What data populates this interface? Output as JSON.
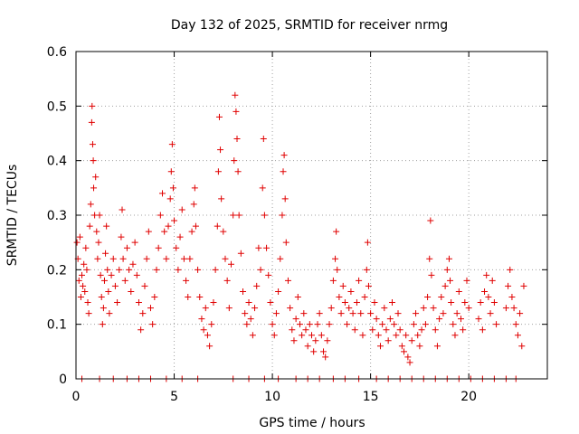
{
  "chart_data": {
    "type": "scatter",
    "title": "Day 132 of 2025, SRMTID for receiver nrmg",
    "xlabel": "GPS time / hours",
    "ylabel": "SRMTID / TECUs",
    "xlim": [
      0,
      24
    ],
    "ylim": [
      0,
      0.6
    ],
    "x_ticks": [
      0,
      5,
      10,
      15,
      20
    ],
    "x_tick_labels": [
      "0",
      "5",
      "10",
      "15",
      "20"
    ],
    "y_ticks": [
      0,
      0.1,
      0.2,
      0.3,
      0.4,
      0.5,
      0.6
    ],
    "y_tick_labels": [
      "0",
      "0.1",
      "0.2",
      "0.3",
      "0.4",
      "0.5",
      "0.6"
    ],
    "grid": true,
    "marker": "+",
    "series": [
      {
        "name": "SRMTID",
        "color": "#e00000",
        "points": [
          [
            0.05,
            0.25
          ],
          [
            0.1,
            0.22
          ],
          [
            0.15,
            0.18
          ],
          [
            0.2,
            0.26
          ],
          [
            0.25,
            0.15
          ],
          [
            0.3,
            0.19
          ],
          [
            0.35,
            0.17
          ],
          [
            0.4,
            0.21
          ],
          [
            0.45,
            0.16
          ],
          [
            0.5,
            0.24
          ],
          [
            0.55,
            0.2
          ],
          [
            0.6,
            0.14
          ],
          [
            0.65,
            0.12
          ],
          [
            0.7,
            0.28
          ],
          [
            0.75,
            0.32
          ],
          [
            0.8,
            0.47
          ],
          [
            0.82,
            0.5
          ],
          [
            0.85,
            0.43
          ],
          [
            0.88,
            0.4
          ],
          [
            0.9,
            0.35
          ],
          [
            0.95,
            0.3
          ],
          [
            1.0,
            0.37
          ],
          [
            1.05,
            0.27
          ],
          [
            1.1,
            0.22
          ],
          [
            1.15,
            0.25
          ],
          [
            1.2,
            0.3
          ],
          [
            1.25,
            0.19
          ],
          [
            1.3,
            0.15
          ],
          [
            1.35,
            0.1
          ],
          [
            1.4,
            0.13
          ],
          [
            1.45,
            0.18
          ],
          [
            1.5,
            0.23
          ],
          [
            1.55,
            0.28
          ],
          [
            1.6,
            0.2
          ],
          [
            1.65,
            0.16
          ],
          [
            1.7,
            0.12
          ],
          [
            1.8,
            0.19
          ],
          [
            1.9,
            0.22
          ],
          [
            2.0,
            0.17
          ],
          [
            2.1,
            0.14
          ],
          [
            2.2,
            0.2
          ],
          [
            2.3,
            0.26
          ],
          [
            2.35,
            0.31
          ],
          [
            2.4,
            0.22
          ],
          [
            2.5,
            0.18
          ],
          [
            2.6,
            0.24
          ],
          [
            2.7,
            0.2
          ],
          [
            2.8,
            0.16
          ],
          [
            2.9,
            0.21
          ],
          [
            3.0,
            0.25
          ],
          [
            3.1,
            0.19
          ],
          [
            3.2,
            0.14
          ],
          [
            3.3,
            0.09
          ],
          [
            3.4,
            0.12
          ],
          [
            3.5,
            0.17
          ],
          [
            3.6,
            0.22
          ],
          [
            3.7,
            0.27
          ],
          [
            3.8,
            0.13
          ],
          [
            3.9,
            0.1
          ],
          [
            4.0,
            0.15
          ],
          [
            4.1,
            0.2
          ],
          [
            4.2,
            0.24
          ],
          [
            4.3,
            0.3
          ],
          [
            4.4,
            0.34
          ],
          [
            4.5,
            0.27
          ],
          [
            4.6,
            0.22
          ],
          [
            4.7,
            0.28
          ],
          [
            4.8,
            0.33
          ],
          [
            4.85,
            0.38
          ],
          [
            4.9,
            0.43
          ],
          [
            4.95,
            0.35
          ],
          [
            5.0,
            0.29
          ],
          [
            5.1,
            0.24
          ],
          [
            5.2,
            0.2
          ],
          [
            5.3,
            0.26
          ],
          [
            5.4,
            0.31
          ],
          [
            5.5,
            0.22
          ],
          [
            5.6,
            0.18
          ],
          [
            5.7,
            0.15
          ],
          [
            5.8,
            0.22
          ],
          [
            5.9,
            0.27
          ],
          [
            6.0,
            0.32
          ],
          [
            6.05,
            0.35
          ],
          [
            6.1,
            0.28
          ],
          [
            6.2,
            0.2
          ],
          [
            6.3,
            0.15
          ],
          [
            6.4,
            0.11
          ],
          [
            6.5,
            0.09
          ],
          [
            6.6,
            0.13
          ],
          [
            6.7,
            0.08
          ],
          [
            6.8,
            0.06
          ],
          [
            6.9,
            0.1
          ],
          [
            7.0,
            0.14
          ],
          [
            7.1,
            0.2
          ],
          [
            7.2,
            0.28
          ],
          [
            7.25,
            0.38
          ],
          [
            7.3,
            0.48
          ],
          [
            7.35,
            0.42
          ],
          [
            7.4,
            0.33
          ],
          [
            7.5,
            0.27
          ],
          [
            7.6,
            0.22
          ],
          [
            7.7,
            0.18
          ],
          [
            7.8,
            0.13
          ],
          [
            7.9,
            0.21
          ],
          [
            8.0,
            0.3
          ],
          [
            8.05,
            0.4
          ],
          [
            8.1,
            0.52
          ],
          [
            8.15,
            0.49
          ],
          [
            8.2,
            0.44
          ],
          [
            8.25,
            0.38
          ],
          [
            8.3,
            0.3
          ],
          [
            8.4,
            0.23
          ],
          [
            8.5,
            0.16
          ],
          [
            8.6,
            0.12
          ],
          [
            8.7,
            0.1
          ],
          [
            8.8,
            0.14
          ],
          [
            8.9,
            0.11
          ],
          [
            9.0,
            0.08
          ],
          [
            9.1,
            0.13
          ],
          [
            9.2,
            0.17
          ],
          [
            9.3,
            0.24
          ],
          [
            9.4,
            0.2
          ],
          [
            9.5,
            0.35
          ],
          [
            9.55,
            0.44
          ],
          [
            9.6,
            0.3
          ],
          [
            9.7,
            0.24
          ],
          [
            9.8,
            0.19
          ],
          [
            9.9,
            0.14
          ],
          [
            10.0,
            0.1
          ],
          [
            10.1,
            0.08
          ],
          [
            10.2,
            0.12
          ],
          [
            10.3,
            0.16
          ],
          [
            10.4,
            0.22
          ],
          [
            10.5,
            0.3
          ],
          [
            10.55,
            0.38
          ],
          [
            10.6,
            0.41
          ],
          [
            10.65,
            0.33
          ],
          [
            10.7,
            0.25
          ],
          [
            10.8,
            0.18
          ],
          [
            10.9,
            0.13
          ],
          [
            11.0,
            0.09
          ],
          [
            11.1,
            0.07
          ],
          [
            11.2,
            0.11
          ],
          [
            11.3,
            0.15
          ],
          [
            11.4,
            0.1
          ],
          [
            11.5,
            0.08
          ],
          [
            11.6,
            0.12
          ],
          [
            11.7,
            0.09
          ],
          [
            11.8,
            0.06
          ],
          [
            11.9,
            0.1
          ],
          [
            12.0,
            0.08
          ],
          [
            12.1,
            0.05
          ],
          [
            12.2,
            0.07
          ],
          [
            12.3,
            0.1
          ],
          [
            12.4,
            0.12
          ],
          [
            12.5,
            0.08
          ],
          [
            12.6,
            0.05
          ],
          [
            12.7,
            0.04
          ],
          [
            12.8,
            0.07
          ],
          [
            12.9,
            0.1
          ],
          [
            13.0,
            0.13
          ],
          [
            13.1,
            0.18
          ],
          [
            13.2,
            0.22
          ],
          [
            13.25,
            0.27
          ],
          [
            13.3,
            0.2
          ],
          [
            13.4,
            0.15
          ],
          [
            13.5,
            0.12
          ],
          [
            13.6,
            0.17
          ],
          [
            13.7,
            0.14
          ],
          [
            13.8,
            0.1
          ],
          [
            13.9,
            0.13
          ],
          [
            14.0,
            0.16
          ],
          [
            14.1,
            0.12
          ],
          [
            14.2,
            0.09
          ],
          [
            14.3,
            0.14
          ],
          [
            14.4,
            0.18
          ],
          [
            14.5,
            0.12
          ],
          [
            14.6,
            0.08
          ],
          [
            14.7,
            0.15
          ],
          [
            14.8,
            0.2
          ],
          [
            14.85,
            0.25
          ],
          [
            14.9,
            0.17
          ],
          [
            15.0,
            0.12
          ],
          [
            15.1,
            0.09
          ],
          [
            15.2,
            0.14
          ],
          [
            15.3,
            0.11
          ],
          [
            15.4,
            0.08
          ],
          [
            15.5,
            0.06
          ],
          [
            15.6,
            0.1
          ],
          [
            15.7,
            0.13
          ],
          [
            15.8,
            0.09
          ],
          [
            15.9,
            0.07
          ],
          [
            16.0,
            0.11
          ],
          [
            16.1,
            0.14
          ],
          [
            16.2,
            0.1
          ],
          [
            16.3,
            0.08
          ],
          [
            16.4,
            0.12
          ],
          [
            16.5,
            0.09
          ],
          [
            16.6,
            0.06
          ],
          [
            16.7,
            0.05
          ],
          [
            16.8,
            0.08
          ],
          [
            16.9,
            0.04
          ],
          [
            17.0,
            0.03
          ],
          [
            17.1,
            0.07
          ],
          [
            17.2,
            0.1
          ],
          [
            17.3,
            0.12
          ],
          [
            17.4,
            0.08
          ],
          [
            17.5,
            0.06
          ],
          [
            17.6,
            0.09
          ],
          [
            17.7,
            0.13
          ],
          [
            17.8,
            0.1
          ],
          [
            17.9,
            0.15
          ],
          [
            18.0,
            0.22
          ],
          [
            18.05,
            0.29
          ],
          [
            18.1,
            0.19
          ],
          [
            18.2,
            0.13
          ],
          [
            18.3,
            0.09
          ],
          [
            18.4,
            0.06
          ],
          [
            18.5,
            0.11
          ],
          [
            18.6,
            0.15
          ],
          [
            18.7,
            0.12
          ],
          [
            18.8,
            0.17
          ],
          [
            18.9,
            0.2
          ],
          [
            19.0,
            0.22
          ],
          [
            19.05,
            0.18
          ],
          [
            19.1,
            0.14
          ],
          [
            19.2,
            0.1
          ],
          [
            19.3,
            0.08
          ],
          [
            19.4,
            0.12
          ],
          [
            19.5,
            0.16
          ],
          [
            19.6,
            0.11
          ],
          [
            19.7,
            0.09
          ],
          [
            19.8,
            0.14
          ],
          [
            19.9,
            0.18
          ],
          [
            20.0,
            0.13
          ],
          [
            20.5,
            0.11
          ],
          [
            20.6,
            0.14
          ],
          [
            20.7,
            0.09
          ],
          [
            20.8,
            0.16
          ],
          [
            20.9,
            0.19
          ],
          [
            21.0,
            0.15
          ],
          [
            21.1,
            0.12
          ],
          [
            21.2,
            0.18
          ],
          [
            21.3,
            0.14
          ],
          [
            21.4,
            0.1
          ],
          [
            21.9,
            0.13
          ],
          [
            22.0,
            0.17
          ],
          [
            22.1,
            0.2
          ],
          [
            22.2,
            0.15
          ],
          [
            22.3,
            0.13
          ],
          [
            22.4,
            0.1
          ],
          [
            22.5,
            0.08
          ],
          [
            22.6,
            0.12
          ],
          [
            22.7,
            0.06
          ],
          [
            22.8,
            0.17
          ],
          [
            0.3,
            0.0
          ],
          [
            1.2,
            0.0
          ],
          [
            1.9,
            0.0
          ],
          [
            2.6,
            0.0
          ],
          [
            3.2,
            0.0
          ],
          [
            3.8,
            0.0
          ],
          [
            4.6,
            0.0
          ],
          [
            5.4,
            0.0
          ],
          [
            6.2,
            0.0
          ],
          [
            8.0,
            0.0
          ],
          [
            8.8,
            0.0
          ],
          [
            9.6,
            0.0
          ],
          [
            10.3,
            0.0
          ],
          [
            11.2,
            0.0
          ],
          [
            11.8,
            0.0
          ],
          [
            12.4,
            0.0
          ],
          [
            13.1,
            0.0
          ],
          [
            13.7,
            0.0
          ],
          [
            14.4,
            0.0
          ],
          [
            15.3,
            0.0
          ],
          [
            15.9,
            0.0
          ],
          [
            16.5,
            0.0
          ],
          [
            17.1,
            0.0
          ],
          [
            17.7,
            0.0
          ],
          [
            18.3,
            0.0
          ],
          [
            18.9,
            0.0
          ],
          [
            19.5,
            0.0
          ],
          [
            20.1,
            0.0
          ],
          [
            20.7,
            0.0
          ],
          [
            21.3,
            0.0
          ],
          [
            21.9,
            0.0
          ],
          [
            22.4,
            0.0
          ]
        ]
      }
    ]
  }
}
